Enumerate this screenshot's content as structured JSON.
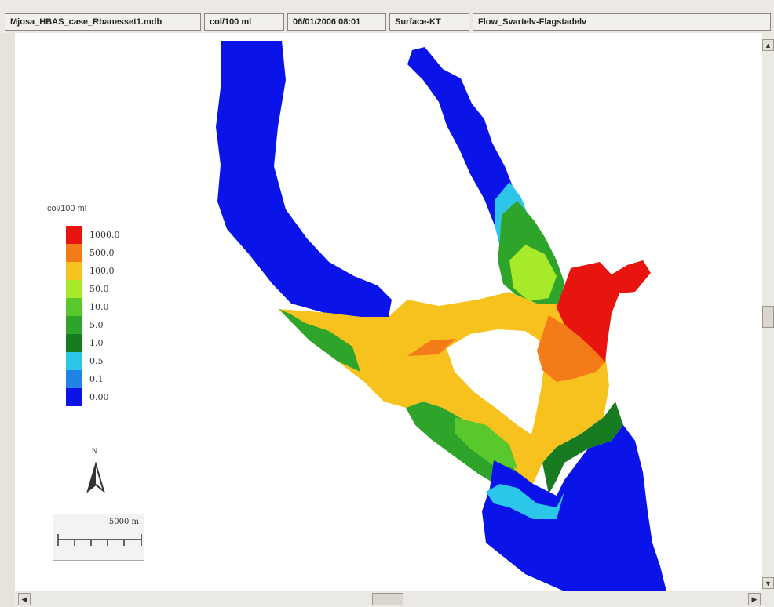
{
  "status": {
    "file": "Mjosa_HBAS_case_Rbanesset1.mdb",
    "unit": "col/100 ml",
    "datetime": "06/01/2006 08:01",
    "layer": "Surface-KT",
    "item": "Flow_Svartelv-Flagstadelv"
  },
  "legend": {
    "title": "col/100 ml",
    "items": [
      {
        "label": "1000.0",
        "color": "#e8140e"
      },
      {
        "label": "500.0",
        "color": "#f47c18"
      },
      {
        "label": "100.0",
        "color": "#f7c21d"
      },
      {
        "label": "50.0",
        "color": "#a6ea2a"
      },
      {
        "label": "10.0",
        "color": "#58c82c"
      },
      {
        "label": "5.0",
        "color": "#2ea52a"
      },
      {
        "label": "1.0",
        "color": "#177b22"
      },
      {
        "label": "0.5",
        "color": "#2bc6e8"
      },
      {
        "label": "0.1",
        "color": "#1f84e6"
      },
      {
        "label": "0.00",
        "color": "#0a14e8"
      }
    ]
  },
  "north_arrow": {
    "label": "N"
  },
  "scale_bar": {
    "label": "5000 m"
  },
  "icons": {
    "scroll_up": "scroll-up-arrow-icon",
    "scroll_down": "scroll-down-arrow-icon",
    "scroll_left": "scroll-left-arrow-icon",
    "scroll_right": "scroll-right-arrow-icon"
  }
}
